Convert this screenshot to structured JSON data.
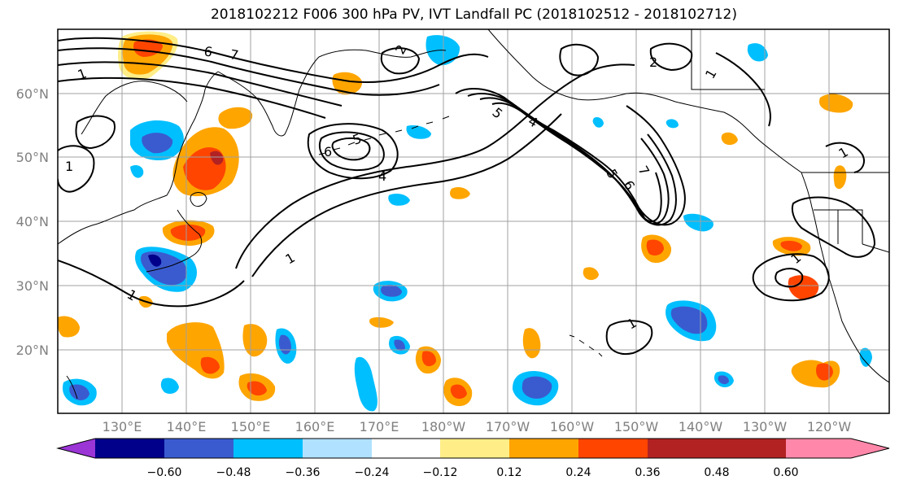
{
  "title": "2018102212 F006 300 hPa PV, IVT Landfall PC (2018102512 - 2018102712)",
  "map": {
    "lat_labels": [
      "60°N",
      "50°N",
      "40°N",
      "30°N",
      "20°N"
    ],
    "lon_labels": [
      "130°E",
      "140°E",
      "150°E",
      "160°E",
      "170°E",
      "180°W",
      "170°W",
      "160°W",
      "150°W",
      "140°W",
      "130°W",
      "120°W"
    ]
  },
  "contour_labels": [
    {
      "text": "1"
    },
    {
      "text": "1"
    },
    {
      "text": "1"
    },
    {
      "text": "1"
    },
    {
      "text": "1"
    },
    {
      "text": "4"
    },
    {
      "text": "4"
    },
    {
      "text": "5"
    },
    {
      "text": "5"
    },
    {
      "text": "6"
    },
    {
      "text": "7"
    },
    {
      "text": "6"
    },
    {
      "text": "5"
    },
    {
      "text": "2"
    },
    {
      "text": "2"
    },
    {
      "text": "6"
    },
    {
      "text": "7"
    },
    {
      "text": "1"
    },
    {
      "text": "1"
    },
    {
      "text": "1"
    }
  ],
  "colorbar": {
    "tick_labels": [
      "−0.60",
      "−0.48",
      "−0.36",
      "−0.24",
      "−0.12",
      "0.12",
      "0.24",
      "0.36",
      "0.48",
      "0.60"
    ],
    "colors": [
      "#9b35d6",
      "#00008b",
      "#3a5bd0",
      "#00bfff",
      "#b0e2ff",
      "#ffffff",
      "#ffee88",
      "#ffa500",
      "#ff4500",
      "#b22222",
      "#ff88aa"
    ]
  }
}
